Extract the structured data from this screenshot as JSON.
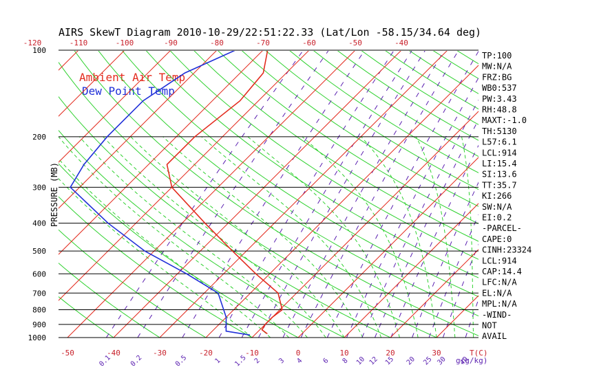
{
  "chart_data": {
    "type": "line",
    "title": "AIRS SkewT Diagram 2010-10-29/22:51:22.33 (Lat/Lon -58.15/34.64 deg)",
    "ylabel": "PRESSURE (MB)",
    "xlabel_right": "T(C)",
    "mixing_ratio_label": "g(g/kg)",
    "y_scale": "log",
    "ylim": [
      1000,
      100
    ],
    "xlim_bottom": [
      -50,
      40
    ],
    "pressure_ticks": [
      100,
      200,
      300,
      400,
      500,
      600,
      700,
      800,
      900,
      1000
    ],
    "bottom_temp_ticks": [
      -50,
      -40,
      -30,
      -20,
      -10,
      0,
      10,
      20,
      30
    ],
    "top_temp_ticks": [
      -120,
      -110,
      -100,
      -90,
      -80,
      -70,
      -60,
      -50,
      -40
    ],
    "mixing_ratio_ticks": [
      "0.1",
      "0.2",
      "0.5",
      "1",
      "1.5",
      "2",
      "3",
      "4",
      "6",
      "8",
      "10",
      "12",
      "15",
      "20",
      "25",
      "30",
      "40"
    ],
    "grid": true,
    "legend": {
      "placement": "top-left",
      "entries": [
        {
          "name": "Ambient Air Temp",
          "color": "#e32b1e"
        },
        {
          "name": "Dew Point Temp",
          "color": "#1f2fd8"
        }
      ]
    },
    "series": [
      {
        "name": "Ambient Air Temp",
        "color": "#e32b1e",
        "points": [
          {
            "p": 970,
            "t": -7.5
          },
          {
            "p": 940,
            "t": -9.5
          },
          {
            "p": 900,
            "t": -10
          },
          {
            "p": 850,
            "t": -10
          },
          {
            "p": 800,
            "t": -9.5
          },
          {
            "p": 700,
            "t": -14
          },
          {
            "p": 600,
            "t": -23
          },
          {
            "p": 500,
            "t": -33
          },
          {
            "p": 400,
            "t": -45
          },
          {
            "p": 300,
            "t": -60
          },
          {
            "p": 250,
            "t": -66
          },
          {
            "p": 200,
            "t": -66
          },
          {
            "p": 150,
            "t": -64
          },
          {
            "p": 120,
            "t": -65
          },
          {
            "p": 100,
            "t": -69
          }
        ]
      },
      {
        "name": "Dew Point Temp",
        "color": "#1f2fd8",
        "points": [
          {
            "p": 980,
            "t": -11
          },
          {
            "p": 950,
            "t": -17
          },
          {
            "p": 850,
            "t": -20
          },
          {
            "p": 700,
            "t": -27
          },
          {
            "p": 600,
            "t": -38
          },
          {
            "p": 500,
            "t": -52
          },
          {
            "p": 400,
            "t": -66
          },
          {
            "p": 300,
            "t": -82
          },
          {
            "p": 250,
            "t": -84
          },
          {
            "p": 200,
            "t": -85
          },
          {
            "p": 150,
            "t": -85
          },
          {
            "p": 120,
            "t": -82
          },
          {
            "p": 100,
            "t": -76
          }
        ]
      }
    ],
    "side_panel": [
      "TP:100",
      "MW:N/A",
      "FRZ:BG",
      "WB0:537",
      "PW:3.43",
      "RH:48.8",
      "MAXT:-1.0",
      "TH:5130",
      "L57:6.1",
      "LCL:914",
      "LI:15.4",
      "SI:13.6",
      "TT:35.7",
      "KI:266",
      "SW:N/A",
      "EI:0.2",
      "-PARCEL-",
      "CAPE:0",
      "CINH:23324",
      "LCL:914",
      "CAP:14.4",
      "LFC:N/A",
      "EL:N/A",
      "MPL:N/A",
      "-WIND-",
      "NOT",
      "AVAIL"
    ]
  },
  "colors": {
    "temp_line": "#e32b1e",
    "dew_line": "#1f2fd8",
    "isotherm": "#e32b1e",
    "dry_adiabat": "#2fd12f",
    "moist_adiabat": "#2fd12f",
    "mixing_ratio": "#5a1fb0",
    "isobar": "#000000",
    "tick_red": "#c8202a",
    "tick_purple": "#5a1fb0"
  }
}
